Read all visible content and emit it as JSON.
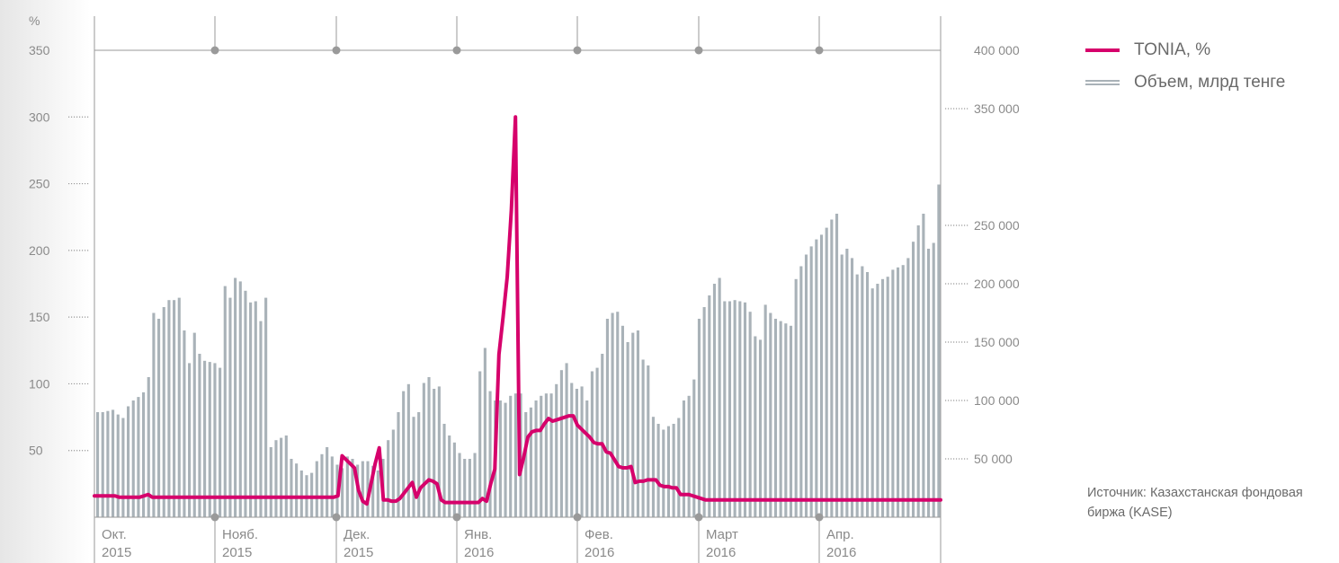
{
  "chart_data": {
    "type": "bar+line",
    "left_axis": {
      "unit_label": "%",
      "ticks": [
        "350",
        "300",
        "250",
        "200",
        "150",
        "100",
        "50"
      ],
      "range": [
        0,
        350
      ]
    },
    "right_axis": {
      "ticks": [
        "400 000",
        "350 000",
        "250 000",
        "200 000",
        "150 000",
        "100 000",
        "50 000"
      ],
      "range": [
        0,
        400000
      ]
    },
    "months": [
      {
        "month": "Окт.",
        "year": "2015"
      },
      {
        "month": "Нояб.",
        "year": "2015"
      },
      {
        "month": "Дек.",
        "year": "2015"
      },
      {
        "month": "Янв.",
        "year": "2016"
      },
      {
        "month": "Фев.",
        "year": "2016"
      },
      {
        "month": "Март",
        "year": "2016"
      },
      {
        "month": "Апр.",
        "year": "2016"
      }
    ],
    "series": [
      {
        "name": "TONIA, %",
        "kind": "line",
        "axis": "left",
        "color": "#d6006b",
        "values": [
          16,
          16,
          16,
          16,
          16,
          16,
          15,
          15,
          15,
          15,
          15,
          15,
          16,
          17,
          15,
          15,
          15,
          15,
          15,
          15,
          15,
          15,
          15,
          15,
          15,
          15,
          15,
          15,
          15,
          15,
          15,
          15,
          15,
          15,
          15,
          15,
          15,
          15,
          15,
          15,
          15,
          15,
          15,
          15,
          15,
          15,
          15,
          15,
          15,
          15,
          15,
          15,
          15,
          15,
          15,
          15,
          15,
          15,
          15,
          16,
          46,
          43,
          40,
          37,
          20,
          12,
          10,
          25,
          40,
          52,
          13,
          13,
          12,
          12,
          14,
          18,
          22,
          26,
          15,
          22,
          25,
          28,
          27,
          25,
          13,
          11,
          11,
          11,
          11,
          11,
          11,
          11,
          11,
          11,
          14,
          12,
          25,
          36,
          122,
          150,
          180,
          230,
          300,
          32,
          45,
          60,
          64,
          65,
          65,
          70,
          74,
          72,
          73,
          74,
          75,
          76,
          76,
          69,
          66,
          63,
          60,
          56,
          55,
          55,
          49,
          48,
          43,
          38,
          37,
          37,
          38,
          26,
          27,
          27,
          28,
          28,
          28,
          24,
          23,
          23,
          22,
          22,
          17,
          17,
          17,
          16,
          15,
          14,
          13,
          13,
          13,
          13,
          13,
          13,
          13,
          13,
          13,
          13,
          13,
          13,
          13,
          13,
          13,
          13,
          13,
          13,
          13,
          13,
          13,
          13,
          13,
          13,
          13,
          13,
          13,
          13,
          13,
          13,
          13,
          13,
          13,
          13,
          13,
          13,
          13,
          13,
          13,
          13,
          13,
          13,
          13,
          13,
          13,
          13,
          13,
          13,
          13,
          13,
          13,
          13,
          13,
          13,
          13,
          13,
          13,
          13
        ]
      },
      {
        "name": "Объем, млрд тенге",
        "kind": "bar",
        "axis": "right",
        "color": "#a9b2b8",
        "values": [
          90000,
          90000,
          91000,
          92000,
          88000,
          85000,
          95000,
          100000,
          103000,
          107000,
          120000,
          175000,
          170000,
          180000,
          186000,
          186000,
          188000,
          160000,
          132000,
          158000,
          140000,
          134000,
          133000,
          132000,
          128000,
          198000,
          188000,
          205000,
          202000,
          194000,
          184000,
          185000,
          168000,
          188000,
          60000,
          66000,
          68000,
          70000,
          50000,
          46000,
          40000,
          36000,
          38000,
          48000,
          54000,
          60000,
          52000,
          45000,
          42000,
          52000,
          50000,
          45000,
          48000,
          48000,
          44000,
          40000,
          50000,
          66000,
          75000,
          90000,
          108000,
          114000,
          86000,
          90000,
          115000,
          120000,
          110000,
          112000,
          80000,
          70000,
          64000,
          55000,
          50000,
          50000,
          55000,
          125000,
          145000,
          108000,
          100000,
          100000,
          98000,
          104000,
          106000,
          106000,
          90000,
          94000,
          100000,
          104000,
          106000,
          106000,
          114000,
          126000,
          132000,
          115000,
          110000,
          112000,
          100000,
          125000,
          128000,
          140000,
          170000,
          175000,
          176000,
          164000,
          150000,
          158000,
          160000,
          135000,
          130000,
          86000,
          80000,
          75000,
          78000,
          80000,
          85000,
          100000,
          104000,
          118000,
          170000,
          180000,
          190000,
          200000,
          205000,
          185000,
          185000,
          186000,
          185000,
          184000,
          176000,
          155000,
          152000,
          182000,
          175000,
          170000,
          168000,
          166000,
          164000,
          204000,
          215000,
          225000,
          232000,
          238000,
          242000,
          248000,
          255000,
          260000,
          225000,
          230000,
          222000,
          208000,
          215000,
          210000,
          196000,
          200000,
          204000,
          206000,
          212000,
          214000,
          216000,
          222000,
          236000,
          250000,
          260000,
          230000,
          235000,
          285000
        ]
      }
    ],
    "grid": "dotted"
  },
  "legend": [
    {
      "label": "TONIA, %"
    },
    {
      "label": "Объем, млрд тенге"
    }
  ],
  "source_text": "Источник: Казахстанская фондовая биржа (KASE)"
}
